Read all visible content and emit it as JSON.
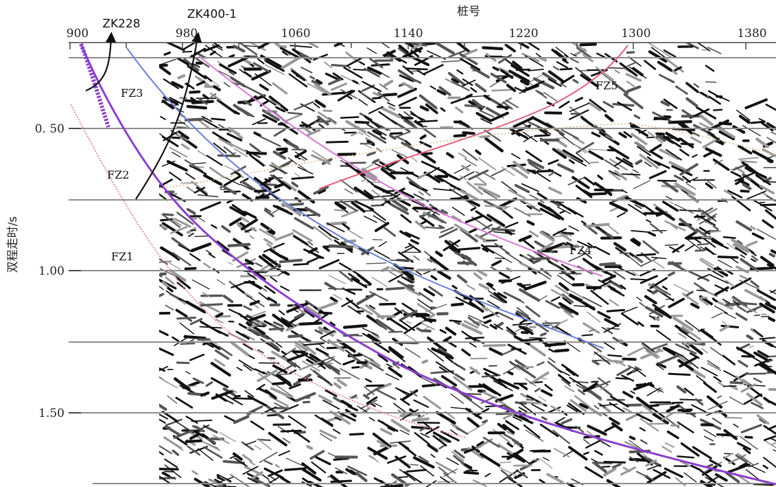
{
  "x_axis": {
    "title": "桩号",
    "ticks": [
      "900",
      "980",
      "1060",
      "1140",
      "1220",
      "1300",
      "1380"
    ]
  },
  "y_axis": {
    "title": "双程走时/s",
    "ticks": [
      "0. 50",
      "1.00",
      "1.50"
    ]
  },
  "wells": [
    {
      "name": "ZK228"
    },
    {
      "name": "ZK400-1"
    }
  ],
  "faults": [
    {
      "name": "FZ1",
      "color": "#e8899a"
    },
    {
      "name": "FZ2",
      "color": "#8a3fd0"
    },
    {
      "name": "FZ3",
      "color": "#6c7fd8"
    },
    {
      "name": "FZ4",
      "color": "#d77ad6"
    },
    {
      "name": "FZ5",
      "color": "#e2607a"
    }
  ],
  "colors": {
    "background": "#ffffff",
    "grid": "#8c8c8c",
    "seismic_ink": "#111111",
    "well_track": "#111111"
  }
}
